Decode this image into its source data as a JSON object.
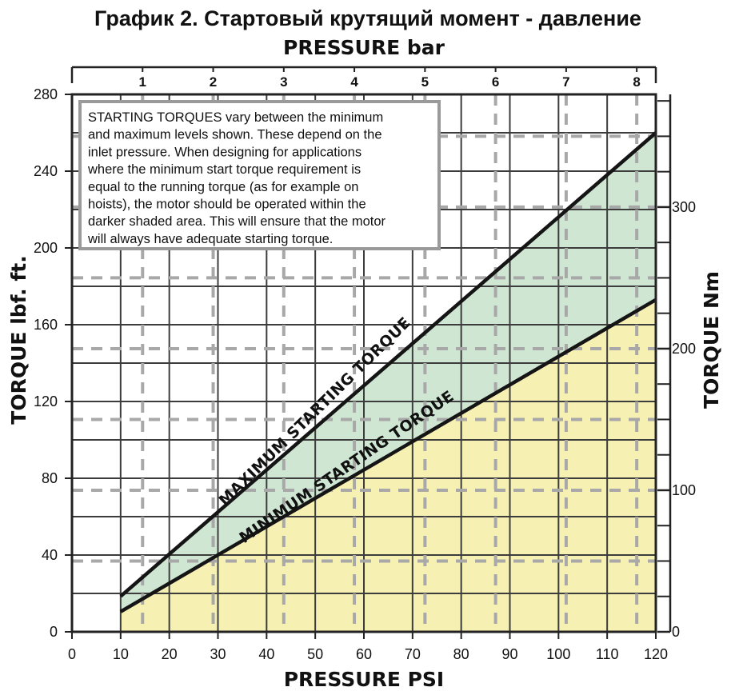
{
  "chart_data": {
    "type": "area",
    "title": "График 2. Стартовый крутящий момент - давление",
    "xlabel": "PRESSURE PSI",
    "x2label": "PRESSURE bar",
    "ylabel": "TORQUE lbf. ft.",
    "y2label": "TORQUE Nm",
    "xlim": [
      0,
      120
    ],
    "ylim": [
      0,
      280
    ],
    "x2lim": [
      0,
      8.27
    ],
    "y2lim": [
      0,
      379.6
    ],
    "x_ticks": [
      "0",
      "10",
      "20",
      "30",
      "40",
      "50",
      "60",
      "70",
      "80",
      "90",
      "100",
      "110",
      "120"
    ],
    "y_ticks": [
      "0",
      "40",
      "80",
      "120",
      "160",
      "200",
      "240",
      "280"
    ],
    "x2_ticks": [
      "1",
      "2",
      "3",
      "4",
      "5",
      "6",
      "7",
      "8"
    ],
    "y2_ticks": [
      "0",
      "100",
      "200",
      "300"
    ],
    "grid": true,
    "series": [
      {
        "name": "MAXIMUM STARTING TORQUE",
        "color": "#cfe6d3",
        "x": [
          10,
          120
        ],
        "values": [
          18.5,
          260
        ]
      },
      {
        "name": "MINIMUM STARTING TORQUE",
        "color": "#f6f1b2",
        "x": [
          10,
          120
        ],
        "values": [
          10.5,
          173
        ]
      }
    ],
    "annotation": "STARTING TORQUES vary between the minimum and maximum levels shown. These depend on the inlet pressure. When designing for applications where the minimum start torque requirement is equal to the running torque (as for example on hoists), the motor should be operated within the darker shaded area. This will ensure that the motor will always have adequate starting torque."
  },
  "note_lines": [
    "STARTING TORQUES vary between the minimum",
    "and maximum levels shown. These depend on the",
    "inlet pressure. When designing for applications",
    "where the minimum start torque requirement is",
    "equal to the running torque (as for example on",
    "hoists), the motor should be operated within the",
    "darker shaded area. This will ensure that the motor",
    "will always have adequate starting torque."
  ]
}
